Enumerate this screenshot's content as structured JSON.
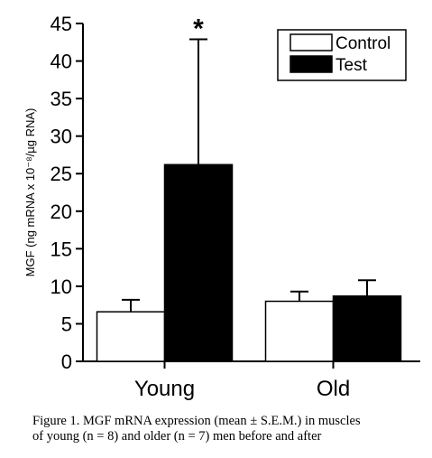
{
  "chart_data": {
    "type": "bar",
    "categories": [
      "Young",
      "Old"
    ],
    "series": [
      {
        "name": "Control",
        "values": [
          6.6,
          8.0
        ],
        "errors": [
          1.6,
          1.3
        ],
        "color": "#ffffff"
      },
      {
        "name": "Test",
        "values": [
          26.2,
          8.7
        ],
        "errors": [
          16.7,
          2.1
        ],
        "color": "#000000"
      }
    ],
    "ylabel": "MGF (ng mRNA x 10⁻⁸/µg RNA)",
    "ylim": [
      0,
      45
    ],
    "yticks": [
      "0",
      "5",
      "10",
      "15",
      "20",
      "25",
      "30",
      "35",
      "40",
      "45"
    ],
    "legend_position": "top-right",
    "annotations": [
      {
        "text": "*",
        "category": "Young",
        "series": "Test"
      }
    ],
    "grid": false
  },
  "caption": {
    "line1": "Figure 1. MGF mRNA expression (mean ± S.E.M.) in muscles",
    "line2": "of young (n = 8) and older (n = 7) men before and after"
  }
}
